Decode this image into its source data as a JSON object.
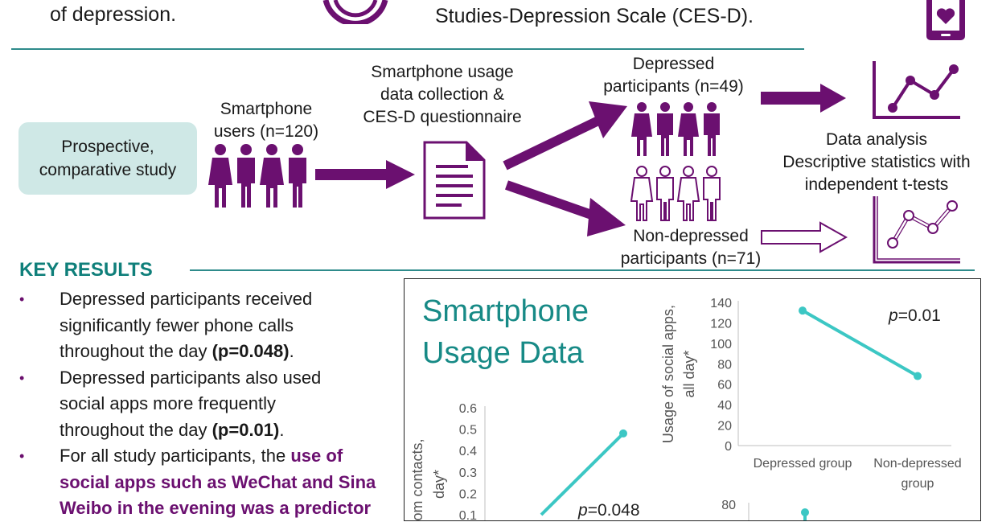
{
  "header": {
    "left_text": "of depression.",
    "right_text": "Studies-Depression Scale (CES-D)."
  },
  "study": {
    "design": [
      "Prospective,",
      "comparative study"
    ],
    "users": [
      "Smartphone",
      "users (n=120)"
    ],
    "collection": [
      "Smartphone usage",
      "data collection &",
      "CES-D questionnaire"
    ],
    "depressed": [
      "Depressed",
      "participants (n=49)"
    ],
    "non_depressed": [
      "Non-depressed",
      "participants (n=71)"
    ],
    "analysis": {
      "title": "Data analysis",
      "method": [
        "Descriptive statistics with",
        "independent t-tests"
      ]
    }
  },
  "key_results": {
    "title": "KEY RESULTS",
    "items": [
      {
        "lines": [
          "Depressed participants received",
          "significantly fewer phone calls"
        ],
        "tail_text": "throughout the day ",
        "stat": "(p=0.048)",
        "end": "."
      },
      {
        "lines": [
          "Depressed participants also used",
          "social apps more frequently"
        ],
        "tail_text": "throughout the day ",
        "stat": "(p=0.01)",
        "end": "."
      },
      {
        "lead": "For all study participants, the ",
        "highlight": [
          "use of",
          "social apps such as WeChat and Sina",
          "Weibo in the evening was a predictor"
        ]
      }
    ]
  },
  "panel": {
    "title": [
      "Smartphone",
      "Usage Data"
    ]
  },
  "colors": {
    "teal": "#2e8b8b",
    "purple": "#6b1070",
    "line": "#3cc7c4"
  },
  "chart_data": [
    {
      "type": "line",
      "categories": [
        "Depressed group",
        "Non-depressed group"
      ],
      "values": [
        132,
        68
      ],
      "ylim": [
        0,
        140
      ],
      "yticks": [
        0,
        20,
        40,
        60,
        80,
        100,
        120,
        140
      ],
      "ylabel": [
        "Usage of social apps,",
        "all day*"
      ],
      "annotation": {
        "p": "p",
        "rest": "=0.01"
      },
      "xtick_labels": [
        [
          "Depressed group"
        ],
        [
          "Non-depressed",
          "group"
        ]
      ]
    },
    {
      "type": "line",
      "values": [
        0.1,
        0.48
      ],
      "ylim": [
        0.1,
        0.6
      ],
      "yticks": [
        0.1,
        0.2,
        0.3,
        0.4,
        0.5,
        0.6
      ],
      "ylabel": [
        "from contacts,",
        "day*"
      ],
      "annotation": {
        "p": "p",
        "rest": "=0.048"
      }
    },
    {
      "type": "line",
      "yticks": [
        80
      ],
      "ylim": [
        0,
        80
      ]
    }
  ]
}
